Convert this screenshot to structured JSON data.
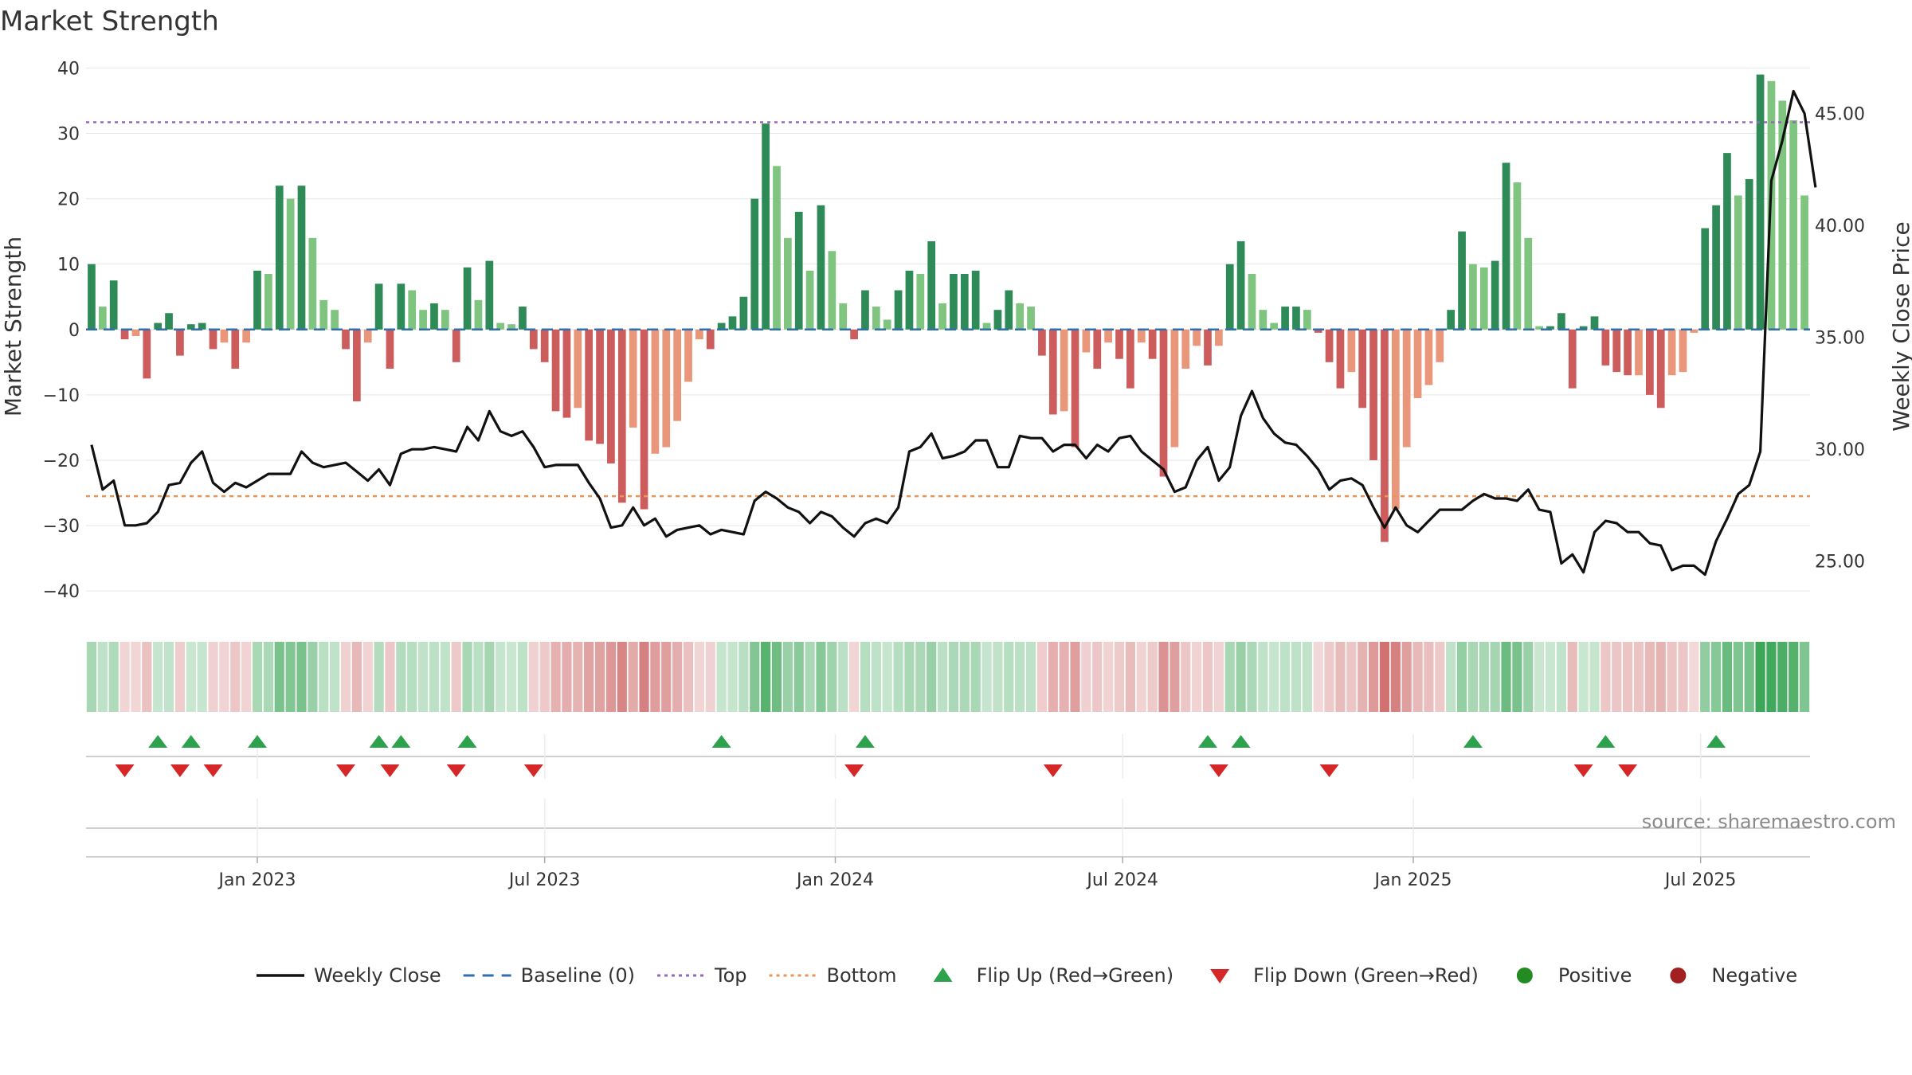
{
  "chart_data": {
    "type": "bar",
    "title": "Market Strength",
    "ylabel_left": "Market Strength",
    "ylabel_right": "Weekly Close Price",
    "source_text": "source: sharemaestro.com",
    "y_left_range": [
      -44,
      40.9
    ],
    "y_left_ticks": [
      "40",
      "30",
      "20",
      "10",
      "0",
      "−10",
      "−20",
      "−30",
      "−40"
    ],
    "y_left_tick_values": [
      40,
      30,
      20,
      10,
      0,
      -10,
      -20,
      -30,
      -40
    ],
    "y_right_range": [
      22.5,
      47.3
    ],
    "y_right_ticks": [
      "45.00",
      "40.00",
      "35.00",
      "30.00",
      "25.00"
    ],
    "y_right_tick_values": [
      45,
      40,
      35,
      30,
      25
    ],
    "top_line": 31.7,
    "bottom_line": -25.5,
    "baseline": 0,
    "x_ticks": [
      "Jan 2023",
      "Jul 2023",
      "Jan 2024",
      "Jul 2024",
      "Jan 2025",
      "Jul 2025"
    ],
    "x_tick_weeks": [
      15,
      41,
      67.3,
      93.3,
      119.6,
      145.6
    ],
    "market_strength": [
      10,
      3.5,
      7.5,
      -1.5,
      -1,
      -7.5,
      1,
      2.5,
      -4,
      0.8,
      1,
      -3,
      -2,
      -6,
      -2,
      9,
      8.5,
      22,
      20,
      22,
      14,
      4.5,
      3,
      -3,
      -11,
      -2,
      7,
      -6,
      7,
      6,
      3,
      4,
      3,
      -5,
      9.5,
      4.5,
      10.5,
      1,
      0.8,
      3.5,
      -3,
      -5,
      -12.5,
      -13.5,
      -12,
      -17,
      -17.5,
      -20.5,
      -26.5,
      -15,
      -27.5,
      -19,
      -18,
      -14,
      -8,
      -1.5,
      -3,
      1,
      2,
      5,
      20,
      31.5,
      25,
      14,
      18,
      9,
      19,
      12,
      4,
      -1.5,
      6,
      3.5,
      1.5,
      6,
      9,
      8.5,
      13.5,
      4,
      8.5,
      8.5,
      9,
      1,
      3,
      6,
      4,
      3.5,
      -4,
      -13,
      -12.5,
      -18,
      -3.5,
      -6,
      -2,
      -4.5,
      -9,
      -2,
      -4.5,
      -22.5,
      -18,
      -6,
      -2.5,
      -5.5,
      -2.5,
      10,
      13.5,
      8.5,
      3,
      1,
      3.5,
      3.5,
      3,
      -0.5,
      -5,
      -9,
      -6.5,
      -12,
      -20,
      -32.5,
      -27.5,
      -18,
      -10.5,
      -8.5,
      -5,
      3,
      15,
      10,
      9.5,
      10.5,
      25.5,
      22.5,
      14,
      0.5,
      0.5,
      2.5,
      -9,
      0.5,
      2,
      -5.5,
      -6.5,
      -7,
      -7,
      -10,
      -12,
      -7,
      -6.5,
      -0.5,
      15.5,
      19,
      27,
      20.5,
      23,
      39,
      38,
      35,
      32,
      20.5
    ],
    "weekly_close": [
      30.2,
      28.2,
      28.6,
      26.6,
      26.6,
      26.7,
      27.2,
      28.4,
      28.5,
      29.4,
      29.9,
      28.5,
      28.1,
      28.5,
      28.3,
      28.6,
      28.9,
      28.9,
      28.9,
      29.9,
      29.4,
      29.2,
      29.3,
      29.4,
      29.0,
      28.6,
      29.1,
      28.4,
      29.8,
      30.0,
      30.0,
      30.1,
      30.0,
      29.9,
      31.0,
      30.4,
      31.7,
      30.8,
      30.6,
      30.8,
      30.1,
      29.2,
      29.3,
      29.3,
      29.3,
      28.5,
      27.8,
      26.5,
      26.6,
      27.4,
      26.6,
      26.9,
      26.1,
      26.4,
      26.5,
      26.6,
      26.2,
      26.4,
      26.3,
      26.2,
      27.7,
      28.1,
      27.8,
      27.4,
      27.2,
      26.7,
      27.2,
      27.0,
      26.5,
      26.1,
      26.7,
      26.9,
      26.7,
      27.4,
      29.9,
      30.1,
      30.7,
      29.6,
      29.7,
      29.9,
      30.4,
      30.4,
      29.2,
      29.2,
      30.6,
      30.5,
      30.5,
      29.9,
      30.2,
      30.2,
      29.6,
      30.2,
      29.9,
      30.5,
      30.6,
      29.9,
      29.5,
      29.1,
      28.1,
      28.3,
      29.5,
      30.1,
      28.6,
      29.2,
      31.5,
      32.6,
      31.4,
      30.7,
      30.3,
      30.2,
      29.7,
      29.1,
      28.2,
      28.6,
      28.7,
      28.4,
      27.4,
      26.5,
      27.4,
      26.6,
      26.3,
      26.8,
      27.3,
      27.3,
      27.3,
      27.7,
      28.0,
      27.8,
      27.8,
      27.7,
      28.2,
      27.3,
      27.2,
      24.9,
      25.3,
      24.5,
      26.3,
      26.8,
      26.7,
      26.3,
      26.3,
      25.8,
      25.7,
      24.6,
      24.8,
      24.8,
      24.4,
      25.9,
      26.9,
      28.0,
      28.4,
      29.9,
      42.0,
      43.8,
      46.0,
      45.0,
      41.7
    ],
    "flip_up_weeks": [
      6,
      9,
      15,
      26,
      28,
      34,
      57,
      70,
      101,
      104,
      125,
      137,
      147
    ],
    "flip_down_weeks": [
      3,
      8,
      11,
      23,
      27,
      33,
      40,
      69,
      87,
      102,
      112,
      135,
      139
    ],
    "legend": [
      {
        "label": "Weekly Close",
        "kind": "line",
        "color": "#111111"
      },
      {
        "label": "Baseline (0)",
        "kind": "dash",
        "color": "#2f6fb0"
      },
      {
        "label": "Top",
        "kind": "dot",
        "color": "#9467bd"
      },
      {
        "label": "Bottom",
        "kind": "dot",
        "color": "#e8955a"
      },
      {
        "label": "Flip Up (Red→Green)",
        "kind": "up",
        "color": "#2ca24c"
      },
      {
        "label": "Flip Down (Green→Red)",
        "kind": "down",
        "color": "#d62728"
      },
      {
        "label": "Positive",
        "kind": "circle",
        "color": "#228b22"
      },
      {
        "label": "Negative",
        "kind": "circle",
        "color": "#a32020"
      }
    ],
    "colors": {
      "positive_strong": "#2e8b57",
      "positive_weak": "#7fc47f",
      "negative_strong": "#cd5c5c",
      "negative_weak": "#e9967a",
      "close_line": "#111111",
      "baseline": "#2f6fb0",
      "top": "#9467bd",
      "bottom": "#e8955a"
    }
  }
}
